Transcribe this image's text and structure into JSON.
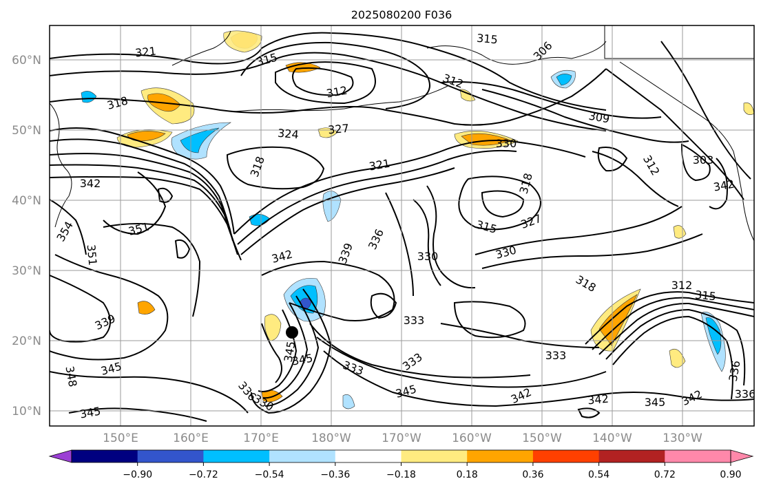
{
  "title": "2025080200 F036",
  "lat_labels": [
    "60°N",
    "50°N",
    "40°N",
    "30°N",
    "20°N",
    "10°N"
  ],
  "lon_labels": [
    "150°E",
    "160°E",
    "170°E",
    "180°W",
    "170°W",
    "160°W",
    "150°W",
    "140°W",
    "130°W"
  ],
  "colorbar": {
    "ticks": [
      "−0.90",
      "−0.72",
      "−0.54",
      "−0.36",
      "−0.18",
      "0.18",
      "0.36",
      "0.54",
      "0.72",
      "0.90"
    ],
    "colors": [
      "#9b3fd4",
      "#000080",
      "#3355cc",
      "#00bfff",
      "#b0e2ff",
      "#ffffff",
      "#ffeb80",
      "#ffa500",
      "#ff4000",
      "#b22222",
      "#ff88aa",
      "#ff88aa"
    ]
  },
  "contour_labels": [
    {
      "text": "321",
      "rotate": -6
    },
    {
      "text": "315",
      "rotate": -15
    },
    {
      "text": "315",
      "rotate": 5
    },
    {
      "text": "306",
      "rotate": -45
    },
    {
      "text": "318",
      "rotate": -15
    },
    {
      "text": "312",
      "rotate": -10
    },
    {
      "text": "312",
      "rotate": 20
    },
    {
      "text": "324",
      "rotate": 5
    },
    {
      "text": "327",
      "rotate": -5
    },
    {
      "text": "309",
      "rotate": 10
    },
    {
      "text": "330",
      "rotate": 0
    },
    {
      "text": "303",
      "rotate": 0
    },
    {
      "text": "312",
      "rotate": 60
    },
    {
      "text": "321",
      "rotate": -10
    },
    {
      "text": "318",
      "rotate": -70
    },
    {
      "text": "342",
      "rotate": 0
    },
    {
      "text": "318",
      "rotate": -75
    },
    {
      "text": "354",
      "rotate": -60
    },
    {
      "text": "351",
      "rotate": -15
    },
    {
      "text": "351",
      "rotate": 85
    },
    {
      "text": "315",
      "rotate": 15
    },
    {
      "text": "327",
      "rotate": -20
    },
    {
      "text": "336",
      "rotate": -65
    },
    {
      "text": "339",
      "rotate": -70
    },
    {
      "text": "342",
      "rotate": -15
    },
    {
      "text": "330",
      "rotate": -15
    },
    {
      "text": "330",
      "rotate": 0
    },
    {
      "text": "318",
      "rotate": 30
    },
    {
      "text": "312",
      "rotate": 0
    },
    {
      "text": "315",
      "rotate": 5
    },
    {
      "text": "339",
      "rotate": -25
    },
    {
      "text": "333",
      "rotate": 0
    },
    {
      "text": "333",
      "rotate": 0
    },
    {
      "text": "345",
      "rotate": -15
    },
    {
      "text": "345",
      "rotate": -80
    },
    {
      "text": "348",
      "rotate": 80
    },
    {
      "text": "345",
      "rotate": -10
    },
    {
      "text": "333",
      "rotate": 20
    },
    {
      "text": "333",
      "rotate": -35
    },
    {
      "text": "345",
      "rotate": -15
    },
    {
      "text": "342",
      "rotate": -25
    },
    {
      "text": "342",
      "rotate": -5
    },
    {
      "text": "345",
      "rotate": 0
    },
    {
      "text": "342",
      "rotate": -25
    },
    {
      "text": "336",
      "rotate": -80
    },
    {
      "text": "336",
      "rotate": 0
    },
    {
      "text": "336",
      "rotate": 50
    },
    {
      "text": "330",
      "rotate": 30
    },
    {
      "text": "342",
      "rotate": -10
    },
    {
      "text": "345",
      "rotate": -10
    }
  ]
}
